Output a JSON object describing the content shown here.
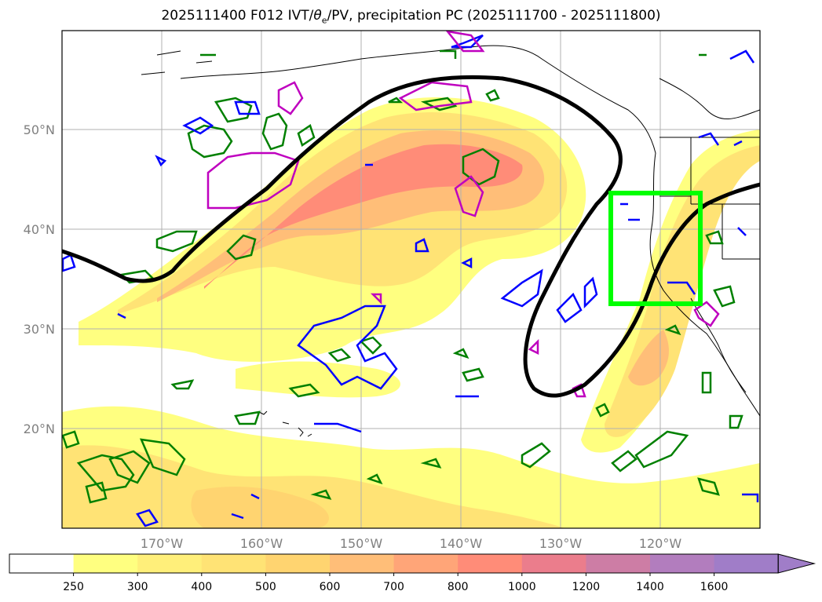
{
  "title": {
    "main": "2025111400 F012 IVT/",
    "theta": "θ",
    "sub": "e",
    "rest": "/PV, precipitation PC (2025111700 - 2025111800)"
  },
  "map": {
    "lat_range": [
      10,
      60
    ],
    "lon_range": [
      -180,
      -110
    ],
    "lat_labels": [
      "20°N",
      "30°N",
      "40°N",
      "50°N"
    ],
    "lon_labels": [
      "170°W",
      "160°W",
      "150°W",
      "140°W",
      "130°W",
      "120°W"
    ],
    "highlight_box_color": "#00ff00",
    "contour_colors": {
      "green": "#008000",
      "blue": "#0000ff",
      "magenta": "#bf00bf",
      "black": "#000000"
    },
    "grid": true
  },
  "colorbar": {
    "levels": [
      "250",
      "300",
      "400",
      "500",
      "600",
      "700",
      "800",
      "1000",
      "1200",
      "1400",
      "1600"
    ],
    "colors": [
      "#ffffff",
      "#ffff80",
      "#ffef7a",
      "#ffe375",
      "#ffd470",
      "#ffbe78",
      "#ffa578",
      "#ff8c78",
      "#eb7d8c",
      "#cd7da5",
      "#b27dbe",
      "#a07dc8"
    ],
    "extend": "max"
  }
}
